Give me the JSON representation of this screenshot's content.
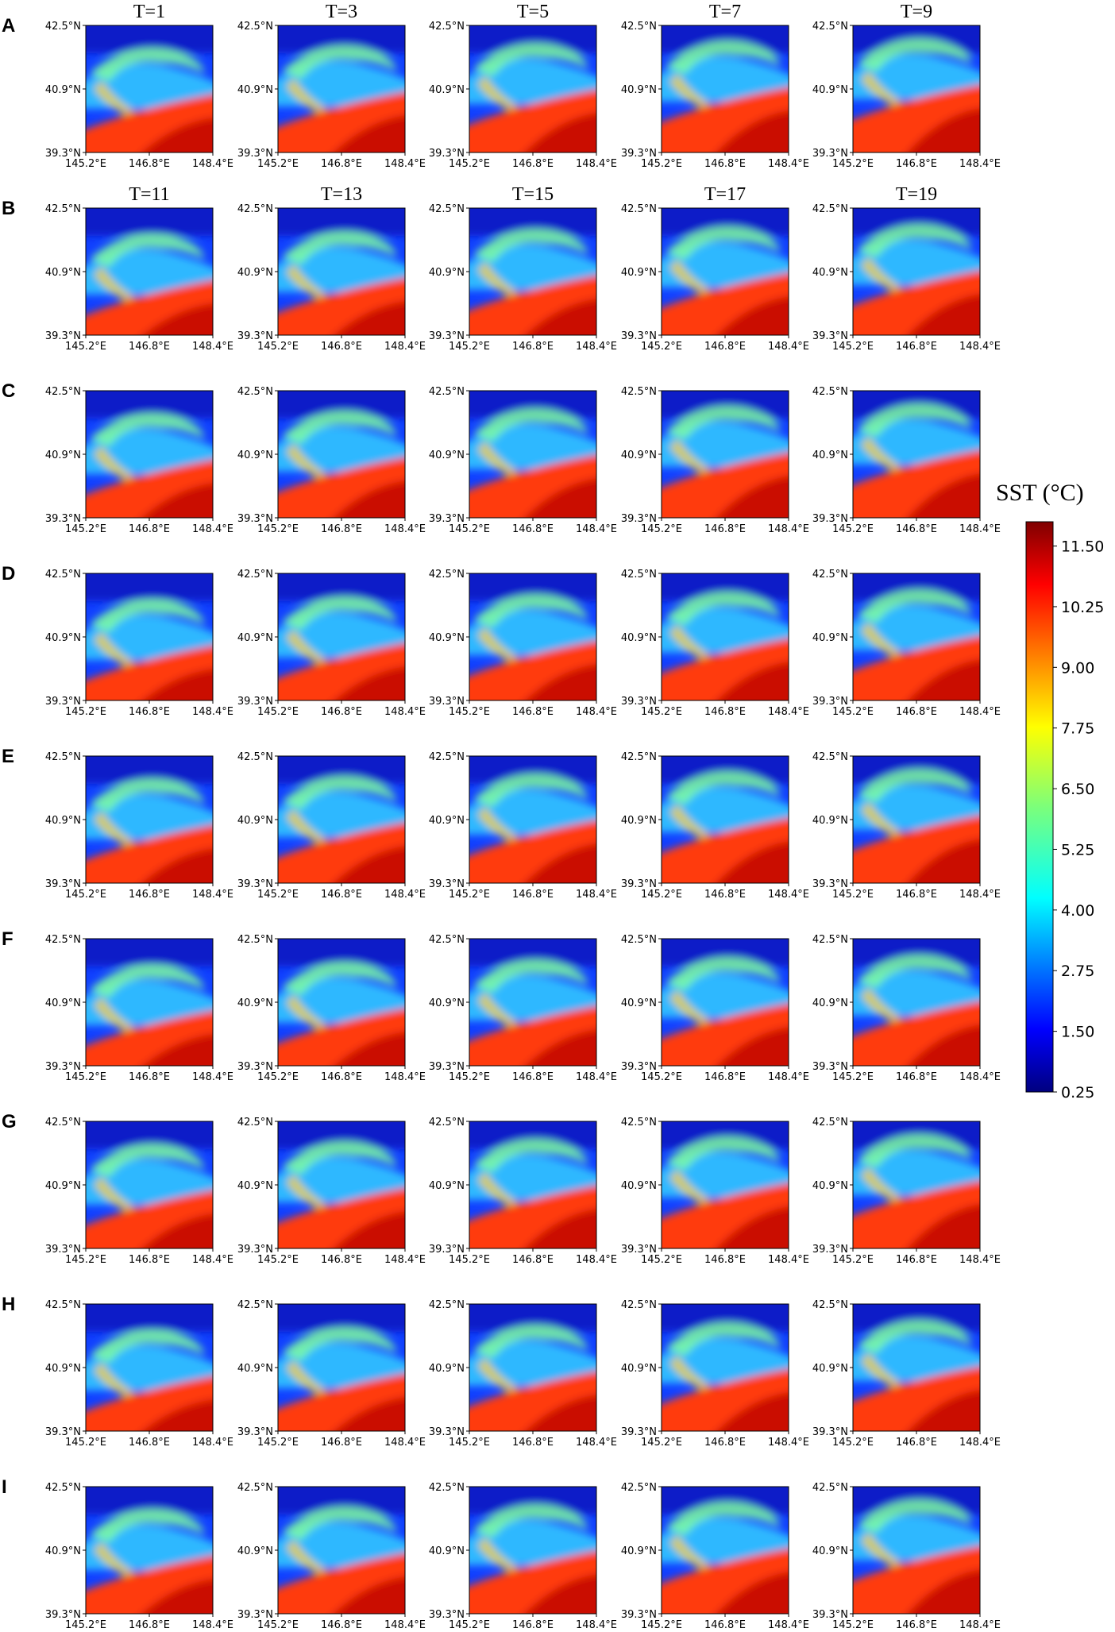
{
  "chart_data": {
    "type": "heatmap",
    "description_of_layout": "9 rows (A–I) by 5 columns of SST maps",
    "row_labels": [
      "A",
      "B",
      "C",
      "D",
      "E",
      "F",
      "G",
      "H",
      "I"
    ],
    "column_titles": {
      "A": [
        "T=1",
        "T=3",
        "T=5",
        "T=7",
        "T=9"
      ],
      "B": [
        "T=11",
        "T=13",
        "T=15",
        "T=17",
        "T=19"
      ]
    },
    "x_ticks": [
      "145.2°E",
      "146.8°E",
      "148.4°E"
    ],
    "y_ticks": [
      "42.5°N",
      "40.9°N",
      "39.3°N"
    ],
    "xlim": [
      145.2,
      148.4
    ],
    "ylim": [
      39.3,
      42.5
    ],
    "colorbar": {
      "title": "SST (°C)",
      "ticks": [
        "11.50",
        "10.25",
        "9.00",
        "7.75",
        "6.50",
        "5.25",
        "4.00",
        "2.75",
        "1.50",
        "0.25"
      ],
      "range": [
        0.25,
        12.0
      ],
      "colormap": "jet"
    }
  }
}
